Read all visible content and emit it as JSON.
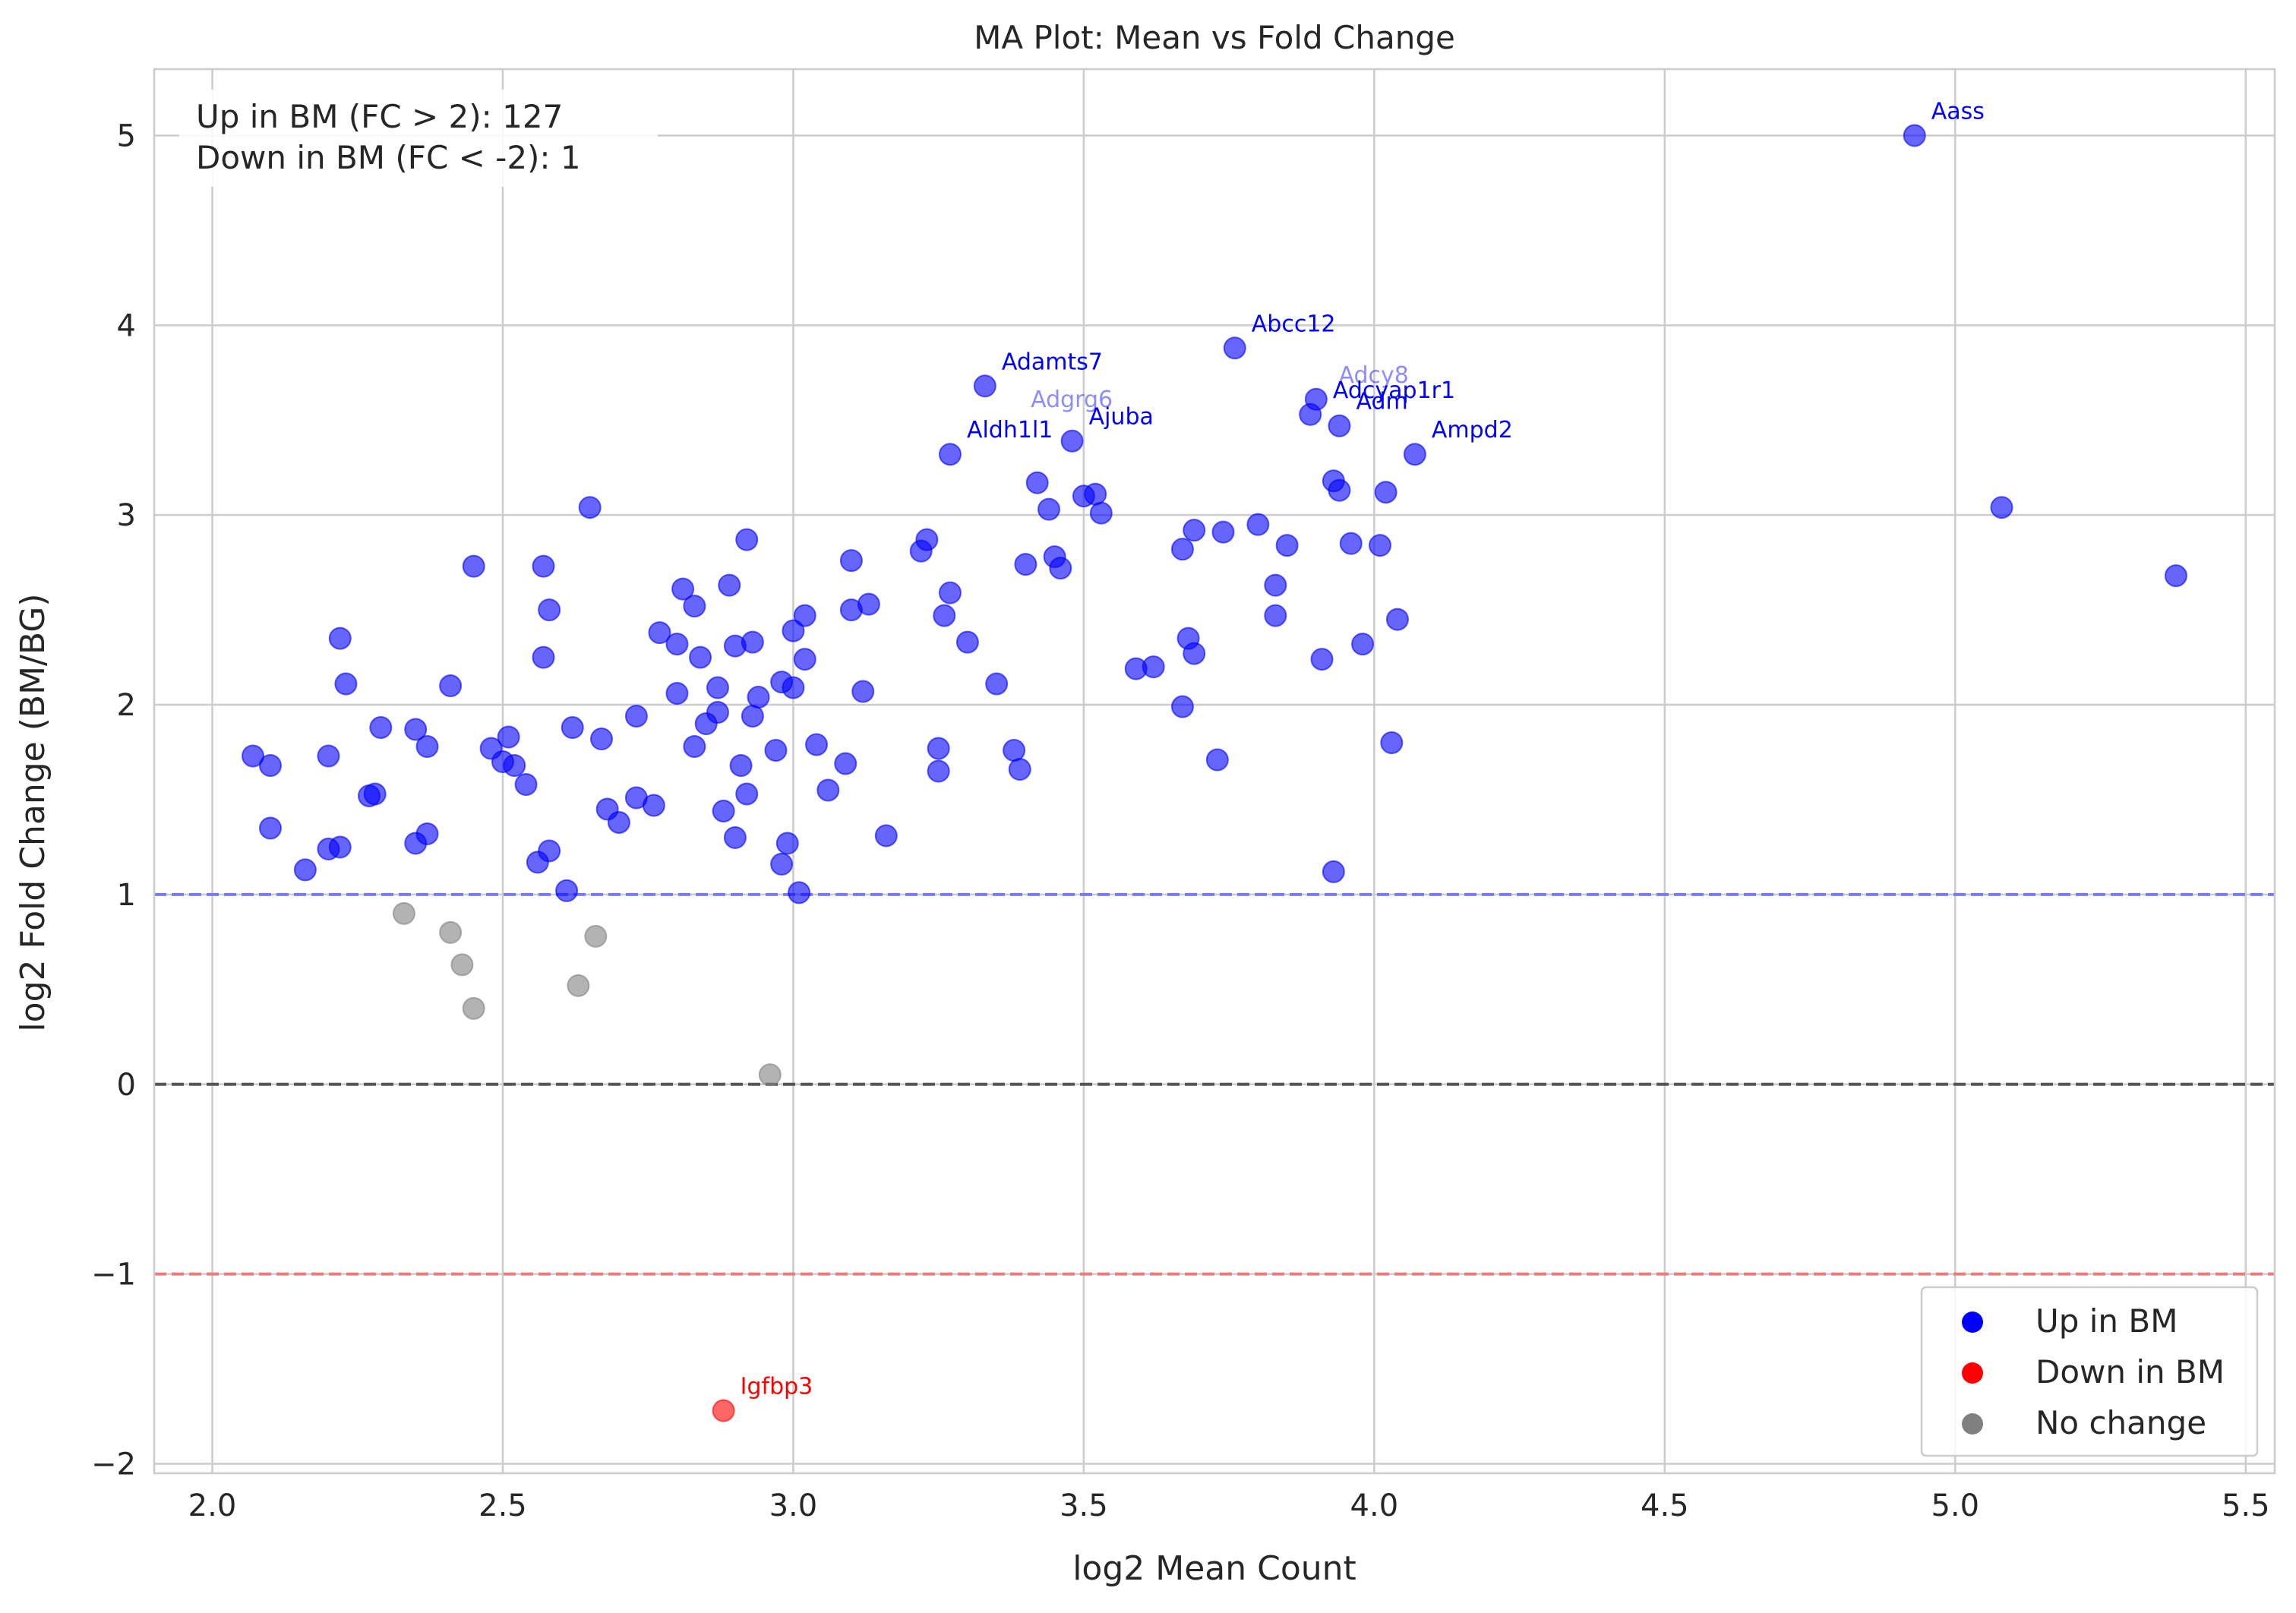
{
  "chart_data": {
    "type": "scatter",
    "title": "MA Plot: Mean vs Fold Change",
    "xlabel": "log2 Mean Count",
    "ylabel": "log2 Fold Change (BM/BG)",
    "xlim": [
      1.9,
      5.55
    ],
    "ylim": [
      -2.05,
      5.35
    ],
    "xticks": [
      2.0,
      2.5,
      3.0,
      3.5,
      4.0,
      4.5,
      5.0,
      5.5
    ],
    "xtick_labels": [
      "2.0",
      "2.5",
      "3.0",
      "3.5",
      "4.0",
      "4.5",
      "5.0",
      "5.5"
    ],
    "yticks": [
      -2,
      -1,
      0,
      1,
      2,
      3,
      4,
      5
    ],
    "ytick_labels": [
      "−2",
      "−1",
      "0",
      "1",
      "2",
      "3",
      "4",
      "5"
    ],
    "grid": true,
    "legend_position": "bottom-right",
    "annotation": {
      "line1": "Up in BM (FC > 2): 127",
      "line2": "Down in BM (FC < -2): 1"
    },
    "reference_lines": [
      {
        "y": 1,
        "color": "#7a7aee",
        "style": "dashed"
      },
      {
        "y": 0,
        "color": "#555555",
        "style": "dashed"
      },
      {
        "y": -1,
        "color": "#ee7a7a",
        "style": "dashed"
      }
    ],
    "colors": {
      "up": "#0000ff",
      "down": "#ff0000",
      "none": "#808080"
    },
    "series": [
      {
        "name": "Up in BM",
        "color": "#0000ff",
        "points": [
          [
            2.07,
            1.73
          ],
          [
            2.1,
            1.68
          ],
          [
            2.1,
            1.35
          ],
          [
            2.16,
            1.13
          ],
          [
            2.2,
            1.73
          ],
          [
            2.2,
            1.24
          ],
          [
            2.22,
            1.25
          ],
          [
            2.22,
            2.35
          ],
          [
            2.23,
            2.11
          ],
          [
            2.27,
            1.52
          ],
          [
            2.28,
            1.53
          ],
          [
            2.29,
            1.88
          ],
          [
            2.35,
            1.87
          ],
          [
            2.35,
            1.27
          ],
          [
            2.37,
            1.78
          ],
          [
            2.37,
            1.32
          ],
          [
            2.41,
            2.1
          ],
          [
            2.45,
            2.73
          ],
          [
            2.48,
            1.77
          ],
          [
            2.5,
            1.7
          ],
          [
            2.51,
            1.83
          ],
          [
            2.52,
            1.68
          ],
          [
            2.54,
            1.58
          ],
          [
            2.56,
            1.17
          ],
          [
            2.57,
            2.25
          ],
          [
            2.57,
            2.73
          ],
          [
            2.58,
            2.5
          ],
          [
            2.58,
            1.23
          ],
          [
            2.61,
            1.02
          ],
          [
            2.62,
            1.88
          ],
          [
            2.65,
            3.04
          ],
          [
            2.67,
            1.82
          ],
          [
            2.68,
            1.45
          ],
          [
            2.7,
            1.38
          ],
          [
            2.73,
            1.94
          ],
          [
            2.73,
            1.51
          ],
          [
            2.77,
            2.38
          ],
          [
            2.76,
            1.47
          ],
          [
            2.8,
            2.06
          ],
          [
            2.81,
            2.61
          ],
          [
            2.8,
            2.32
          ],
          [
            2.83,
            2.52
          ],
          [
            2.83,
            1.78
          ],
          [
            2.84,
            2.25
          ],
          [
            2.85,
            1.9
          ],
          [
            2.87,
            1.96
          ],
          [
            2.87,
            2.09
          ],
          [
            2.88,
            1.44
          ],
          [
            2.89,
            2.63
          ],
          [
            2.9,
            1.3
          ],
          [
            2.9,
            2.31
          ],
          [
            2.91,
            1.68
          ],
          [
            2.92,
            2.87
          ],
          [
            2.92,
            1.53
          ],
          [
            2.93,
            2.33
          ],
          [
            2.93,
            1.94
          ],
          [
            2.94,
            2.04
          ],
          [
            2.97,
            1.76
          ],
          [
            2.98,
            2.12
          ],
          [
            2.98,
            1.16
          ],
          [
            2.99,
            1.27
          ],
          [
            3.0,
            2.09
          ],
          [
            3.0,
            2.39
          ],
          [
            3.01,
            1.01
          ],
          [
            3.02,
            2.47
          ],
          [
            3.02,
            2.24
          ],
          [
            3.04,
            1.79
          ],
          [
            3.06,
            1.55
          ],
          [
            3.09,
            1.69
          ],
          [
            3.1,
            2.76
          ],
          [
            3.1,
            2.5
          ],
          [
            3.12,
            2.07
          ],
          [
            3.13,
            2.53
          ],
          [
            3.16,
            1.31
          ],
          [
            3.22,
            2.81
          ],
          [
            3.23,
            2.87
          ],
          [
            3.25,
            1.77
          ],
          [
            3.25,
            1.65
          ],
          [
            3.26,
            2.47
          ],
          [
            3.27,
            2.59
          ],
          [
            3.27,
            3.32
          ],
          [
            3.3,
            2.33
          ],
          [
            3.33,
            3.68
          ],
          [
            3.35,
            2.11
          ],
          [
            3.38,
            1.76
          ],
          [
            3.39,
            1.66
          ],
          [
            3.4,
            2.74
          ],
          [
            3.42,
            3.17
          ],
          [
            3.44,
            3.03
          ],
          [
            3.45,
            2.78
          ],
          [
            3.46,
            2.72
          ],
          [
            3.48,
            3.39
          ],
          [
            3.5,
            3.1
          ],
          [
            3.52,
            3.11
          ],
          [
            3.53,
            3.01
          ],
          [
            3.59,
            2.19
          ],
          [
            3.62,
            2.2
          ],
          [
            3.67,
            2.82
          ],
          [
            3.67,
            1.99
          ],
          [
            3.68,
            2.35
          ],
          [
            3.69,
            2.27
          ],
          [
            3.69,
            2.92
          ],
          [
            3.73,
            1.71
          ],
          [
            3.74,
            2.91
          ],
          [
            3.76,
            3.88
          ],
          [
            3.8,
            2.95
          ],
          [
            3.83,
            2.63
          ],
          [
            3.83,
            2.47
          ],
          [
            3.85,
            2.84
          ],
          [
            3.89,
            3.53
          ],
          [
            3.9,
            3.61
          ],
          [
            3.91,
            2.24
          ],
          [
            3.93,
            1.12
          ],
          [
            3.93,
            3.18
          ],
          [
            3.94,
            3.13
          ],
          [
            3.94,
            3.47
          ],
          [
            3.96,
            2.85
          ],
          [
            3.98,
            2.32
          ],
          [
            4.01,
            2.84
          ],
          [
            4.02,
            3.12
          ],
          [
            4.03,
            1.8
          ],
          [
            4.04,
            2.45
          ],
          [
            4.07,
            3.32
          ],
          [
            4.93,
            5.0
          ],
          [
            5.08,
            3.04
          ],
          [
            5.38,
            2.68
          ]
        ]
      },
      {
        "name": "Down in BM",
        "color": "#ff0000",
        "points": [
          [
            2.88,
            -1.72
          ]
        ]
      },
      {
        "name": "No change",
        "color": "#808080",
        "points": [
          [
            2.33,
            0.9
          ],
          [
            2.41,
            0.8
          ],
          [
            2.43,
            0.63
          ],
          [
            2.45,
            0.4
          ],
          [
            2.63,
            0.52
          ],
          [
            2.66,
            0.78
          ],
          [
            2.96,
            0.05
          ]
        ]
      }
    ],
    "labels": [
      {
        "text": "Aass",
        "x": 4.93,
        "y": 5.0,
        "color": "#0000ff"
      },
      {
        "text": "Abcc12",
        "x": 3.76,
        "y": 3.88,
        "color": "#0000ff"
      },
      {
        "text": "Adamts7",
        "x": 3.33,
        "y": 3.68,
        "color": "#0000ff"
      },
      {
        "text": "Adcy8",
        "x": 3.91,
        "y": 3.61,
        "color": "#0000ff",
        "faded": true
      },
      {
        "text": "Adcyap1r1",
        "x": 3.9,
        "y": 3.53,
        "color": "#0000ff"
      },
      {
        "text": "Adgrg6",
        "x": 3.38,
        "y": 3.48,
        "color": "#0000ff",
        "faded": true
      },
      {
        "text": "Adm",
        "x": 3.94,
        "y": 3.47,
        "color": "#0000ff"
      },
      {
        "text": "Ajuba",
        "x": 3.48,
        "y": 3.39,
        "color": "#0000ff"
      },
      {
        "text": "Aldh1l1",
        "x": 3.27,
        "y": 3.32,
        "color": "#0000ff"
      },
      {
        "text": "Ampd2",
        "x": 4.07,
        "y": 3.32,
        "color": "#0000ff"
      },
      {
        "text": "Igfbp3",
        "x": 2.88,
        "y": -1.72,
        "color": "#ff0000"
      }
    ]
  }
}
